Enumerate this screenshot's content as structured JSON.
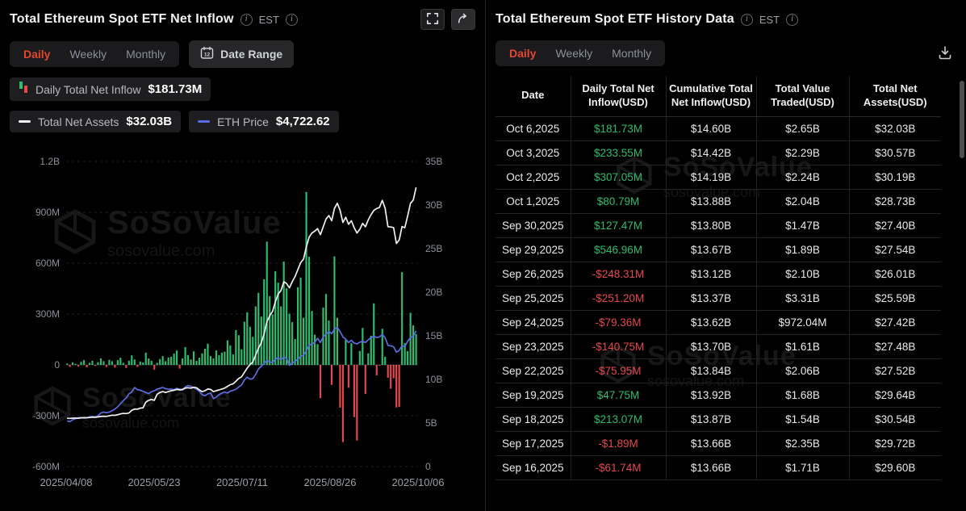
{
  "colors": {
    "accent": "#e5472e",
    "green": "#2ebd70",
    "red": "#e5484d",
    "assets_line": "#f2f2f2",
    "eth_line": "#5c6ce0",
    "axis_text": "#8b909a"
  },
  "watermark": {
    "name": "SoSoValue",
    "domain": "sosovalue.com"
  },
  "left": {
    "title": "Total Ethereum Spot ETF Net Inflow",
    "est": "EST",
    "tabs": [
      "Daily",
      "Weekly",
      "Monthly"
    ],
    "date_range_label": "Date Range",
    "calendar_day": "12",
    "legend": {
      "daily_label": "Daily Total Net Inflow",
      "daily_value": "$181.73M",
      "assets_label": "Total Net Assets",
      "assets_value": "$32.03B",
      "eth_label": "ETH Price",
      "eth_value": "$4,722.62"
    }
  },
  "right": {
    "title": "Total Ethereum Spot ETF History Data",
    "est": "EST",
    "tabs": [
      "Daily",
      "Weekly",
      "Monthly"
    ],
    "table": {
      "headers": [
        "Date",
        "Daily Total Net Inflow(USD)",
        "Cumulative Total Net Inflow(USD)",
        "Total Value Traded(USD)",
        "Total Net Assets(USD)"
      ],
      "rows": [
        {
          "date": "Oct 6,2025",
          "daily": "$181.73M",
          "cumulative": "$14.60B",
          "traded": "$2.65B",
          "assets": "$32.03B"
        },
        {
          "date": "Oct 3,2025",
          "daily": "$233.55M",
          "cumulative": "$14.42B",
          "traded": "$2.29B",
          "assets": "$30.57B"
        },
        {
          "date": "Oct 2,2025",
          "daily": "$307.05M",
          "cumulative": "$14.19B",
          "traded": "$2.24B",
          "assets": "$30.19B"
        },
        {
          "date": "Oct 1,2025",
          "daily": "$80.79M",
          "cumulative": "$13.88B",
          "traded": "$2.04B",
          "assets": "$28.73B"
        },
        {
          "date": "Sep 30,2025",
          "daily": "$127.47M",
          "cumulative": "$13.80B",
          "traded": "$1.47B",
          "assets": "$27.40B"
        },
        {
          "date": "Sep 29,2025",
          "daily": "$546.96M",
          "cumulative": "$13.67B",
          "traded": "$1.89B",
          "assets": "$27.54B"
        },
        {
          "date": "Sep 26,2025",
          "daily": "-$248.31M",
          "cumulative": "$13.12B",
          "traded": "$2.10B",
          "assets": "$26.01B"
        },
        {
          "date": "Sep 25,2025",
          "daily": "-$251.20M",
          "cumulative": "$13.37B",
          "traded": "$3.31B",
          "assets": "$25.59B"
        },
        {
          "date": "Sep 24,2025",
          "daily": "-$79.36M",
          "cumulative": "$13.62B",
          "traded": "$972.04M",
          "assets": "$27.42B"
        },
        {
          "date": "Sep 23,2025",
          "daily": "-$140.75M",
          "cumulative": "$13.70B",
          "traded": "$1.61B",
          "assets": "$27.48B"
        },
        {
          "date": "Sep 22,2025",
          "daily": "-$75.95M",
          "cumulative": "$13.84B",
          "traded": "$2.06B",
          "assets": "$27.52B"
        },
        {
          "date": "Sep 19,2025",
          "daily": "$47.75M",
          "cumulative": "$13.92B",
          "traded": "$1.68B",
          "assets": "$29.64B"
        },
        {
          "date": "Sep 18,2025",
          "daily": "$213.07M",
          "cumulative": "$13.87B",
          "traded": "$1.54B",
          "assets": "$30.54B"
        },
        {
          "date": "Sep 17,2025",
          "daily": "-$1.89M",
          "cumulative": "$13.66B",
          "traded": "$2.35B",
          "assets": "$29.72B"
        },
        {
          "date": "Sep 16,2025",
          "daily": "-$61.74M",
          "cumulative": "$13.66B",
          "traded": "$1.71B",
          "assets": "$29.60B"
        }
      ]
    }
  },
  "chart_data": {
    "type": "bar",
    "title": "Total Ethereum Spot ETF Net Inflow",
    "x_ticks": [
      "2025/04/08",
      "2025/05/23",
      "2025/07/11",
      "2025/08/26",
      "2025/10/06"
    ],
    "left_ticks": [
      "1.2B",
      "900M",
      "600M",
      "300M",
      "0",
      "-300M",
      "-600M"
    ],
    "right_ticks": [
      "35B",
      "30B",
      "25B",
      "20B",
      "15B",
      "10B",
      "5B",
      "0"
    ],
    "left_axis_range_m": [
      -600,
      1200
    ],
    "right_axis_range_b": [
      0,
      35
    ],
    "eth_map": {
      "p0": 1400,
      "p1": 4950,
      "b0": 5.0,
      "b1": 16.3
    },
    "series_names": [
      "Daily Total Net Inflow (USD M)",
      "Total Net Assets (USD B)",
      "ETH Price (USD)"
    ],
    "inflows_m": [
      8,
      -12,
      15,
      6,
      -10,
      18,
      28,
      -14,
      12,
      24,
      -6,
      16,
      38,
      22,
      -12,
      30,
      22,
      -16,
      28,
      42,
      12,
      -18,
      24,
      56,
      32,
      -12,
      20,
      14,
      72,
      38,
      24,
      -28,
      12,
      34,
      52,
      22,
      44,
      48,
      66,
      85,
      -22,
      38,
      105,
      58,
      32,
      80,
      24,
      42,
      68,
      95,
      125,
      52,
      38,
      85,
      58,
      72,
      78,
      145,
      115,
      62,
      205,
      175,
      92,
      255,
      310,
      225,
      165,
      345,
      425,
      285,
      505,
      727,
      405,
      298,
      552,
      485,
      345,
      610,
      452,
      302,
      252,
      152,
      458,
      515,
      278,
      1020,
      638,
      318,
      178,
      122,
      -196,
      338,
      418,
      262,
      -118,
      640,
      278,
      -252,
      -455,
      148,
      -135,
      128,
      -308,
      -446,
      82,
      218,
      -172,
      68,
      172,
      363,
      -61.74,
      -1.89,
      213.07,
      47.75,
      -75.95,
      -140.75,
      -79.36,
      -251.2,
      -248.31,
      546.96,
      127.47,
      80.79,
      307.05,
      233.55,
      181.73
    ],
    "net_assets_b": [
      5.55,
      5.53,
      5.56,
      5.57,
      5.55,
      5.58,
      5.62,
      5.6,
      5.63,
      5.67,
      5.66,
      5.69,
      5.75,
      5.78,
      5.76,
      5.82,
      5.9,
      5.88,
      5.95,
      6.05,
      6.1,
      6.08,
      6.15,
      6.45,
      6.6,
      6.58,
      6.7,
      6.75,
      7.4,
      7.6,
      7.7,
      7.6,
      8.3,
      8.5,
      8.6,
      8.5,
      8.6,
      8.7,
      8.75,
      8.85,
      8.8,
      8.85,
      9.0,
      9.05,
      9.0,
      9.1,
      9.05,
      8.8,
      8.6,
      8.7,
      8.9,
      8.85,
      8.6,
      8.7,
      8.8,
      8.9,
      9.0,
      9.2,
      9.4,
      9.5,
      9.8,
      10.1,
      10.3,
      10.8,
      11.3,
      11.7,
      12.0,
      12.8,
      13.6,
      14.2,
      15.2,
      16.6,
      17.3,
      17.8,
      18.9,
      19.8,
      20.2,
      21.2,
      21.0,
      20.5,
      21.2,
      21.8,
      22.6,
      23.4,
      23.8,
      25.2,
      26.3,
      26.8,
      27.0,
      27.3,
      26.6,
      27.5,
      28.4,
      28.8,
      28.2,
      29.6,
      30.2,
      29.4,
      28.0,
      28.6,
      27.8,
      28.2,
      27.4,
      26.8,
      27.2,
      27.9,
      27.5,
      28.3,
      28.9,
      29.4,
      29.6,
      29.72,
      30.54,
      29.64,
      27.52,
      27.48,
      27.42,
      25.59,
      26.01,
      27.54,
      27.4,
      28.73,
      30.19,
      30.57,
      32.03
    ],
    "eth_price": [
      1470,
      1450,
      1520,
      1555,
      1585,
      1600,
      1575,
      1590,
      1620,
      1640,
      1615,
      1660,
      1760,
      1790,
      1770,
      1795,
      1840,
      1900,
      1990,
      2100,
      2210,
      2300,
      2450,
      2520,
      2680,
      2600,
      2580,
      2540,
      2500,
      2460,
      2530,
      2560,
      2620,
      2650,
      2680,
      2640,
      2620,
      2620,
      2600,
      2650,
      2620,
      2580,
      2700,
      2750,
      2720,
      2680,
      2620,
      2540,
      2420,
      2380,
      2450,
      2480,
      2280,
      2330,
      2420,
      2480,
      2520,
      2480,
      2550,
      2580,
      2620,
      2700,
      2770,
      2950,
      3050,
      2980,
      3000,
      3150,
      3350,
      3450,
      3550,
      3650,
      3600,
      3580,
      3700,
      3750,
      3680,
      3780,
      3720,
      3480,
      3560,
      3620,
      3700,
      3800,
      3850,
      4000,
      4200,
      4250,
      4300,
      4450,
      4300,
      4500,
      4600,
      4700,
      4620,
      4780,
      4850,
      4700,
      4500,
      4420,
      4300,
      4380,
      4280,
      4250,
      4310,
      4350,
      4300,
      4400,
      4480,
      4520,
      4480,
      4500,
      4590,
      4480,
      4200,
      4180,
      4150,
      3950,
      4020,
      4180,
      4150,
      4350,
      4480,
      4520,
      4722.62
    ]
  }
}
